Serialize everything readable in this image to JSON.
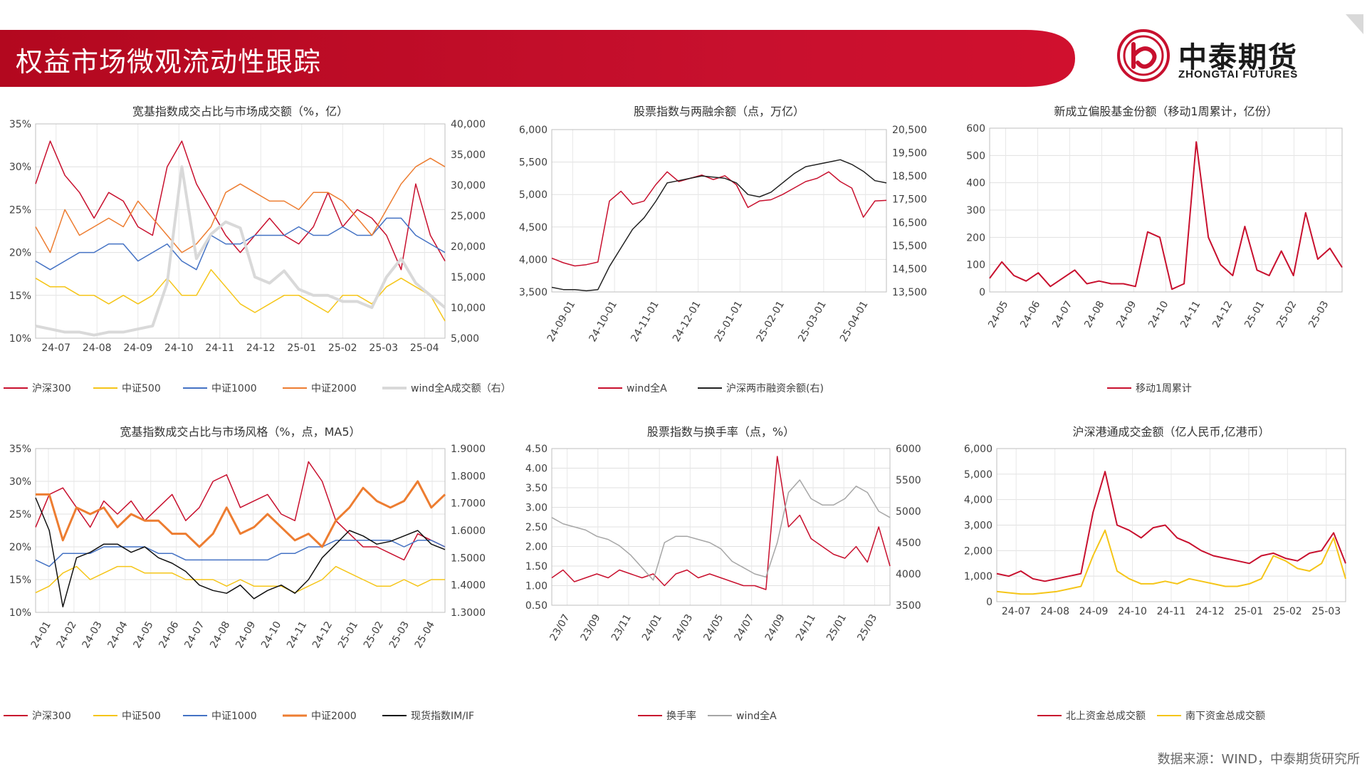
{
  "page": {
    "title": "权益市场微观流动性跟踪",
    "logo_cn": "中泰期货",
    "logo_en": "ZHONGTAI FUTURES",
    "source": "数据来源：WIND，中泰期货研究所",
    "accent": "#c8102e"
  },
  "chart_data": [
    {
      "id": "c1",
      "type": "line",
      "title": "宽基指数成交占比与市场成交额（%，亿）",
      "x_labels": [
        "24-07",
        "24-08",
        "24-09",
        "24-10",
        "24-11",
        "24-12",
        "25-01",
        "25-02",
        "25-03",
        "25-04"
      ],
      "ylim": [
        10,
        35
      ],
      "y_ticks": [
        "10%",
        "15%",
        "20%",
        "25%",
        "30%",
        "35%"
      ],
      "y2lim": [
        5000,
        40000
      ],
      "y2_ticks": [
        "5,000",
        "10,000",
        "15,000",
        "20,000",
        "25,000",
        "30,000",
        "35,000",
        "40,000"
      ],
      "grid": true,
      "legend": "bottom",
      "series": [
        {
          "name": "沪深300",
          "color": "#c8102e",
          "axis": "left",
          "values": [
            28,
            33,
            29,
            27,
            24,
            27,
            26,
            23,
            22,
            30,
            33,
            28,
            25,
            22,
            20,
            22,
            24,
            22,
            21,
            23,
            27,
            23,
            25,
            24,
            22,
            18,
            28,
            22,
            19
          ],
          "width": 1.5
        },
        {
          "name": "中证500",
          "color": "#f5c518",
          "axis": "left",
          "values": [
            17,
            16,
            16,
            15,
            15,
            14,
            15,
            14,
            15,
            17,
            15,
            15,
            18,
            16,
            14,
            13,
            14,
            15,
            15,
            14,
            13,
            15,
            15,
            14,
            16,
            17,
            16,
            15,
            12
          ],
          "width": 1.5
        },
        {
          "name": "中证1000",
          "color": "#4472c4",
          "axis": "left",
          "values": [
            19,
            18,
            19,
            20,
            20,
            21,
            21,
            19,
            20,
            21,
            19,
            18,
            22,
            21,
            21,
            22,
            22,
            22,
            23,
            22,
            22,
            23,
            22,
            22,
            24,
            24,
            22,
            21,
            20
          ],
          "width": 1.5
        },
        {
          "name": "中证2000",
          "color": "#ed7d31",
          "axis": "left",
          "values": [
            23,
            20,
            25,
            22,
            23,
            24,
            23,
            26,
            24,
            22,
            20,
            21,
            23,
            27,
            28,
            27,
            26,
            26,
            25,
            27,
            27,
            26,
            24,
            22,
            25,
            28,
            30,
            31,
            30
          ],
          "width": 1.5
        },
        {
          "name": "wind全A成交额（右）",
          "color": "#d9d9d9",
          "axis": "right",
          "values": [
            7000,
            6500,
            6000,
            6000,
            5500,
            6000,
            6000,
            6500,
            7000,
            14000,
            33000,
            18000,
            22000,
            24000,
            23000,
            15000,
            14000,
            16000,
            13000,
            12000,
            12000,
            11000,
            11000,
            10000,
            15000,
            18000,
            14000,
            12000,
            10000
          ],
          "width": 4
        }
      ]
    },
    {
      "id": "c2",
      "type": "line",
      "title": "股票指数与两融余额（点，万亿）",
      "x_labels": [
        "24-09-01",
        "24-10-01",
        "24-11-01",
        "24-12-01",
        "25-01-01",
        "25-02-01",
        "25-03-01",
        "25-04-01"
      ],
      "ylim": [
        3500,
        6000
      ],
      "y_ticks": [
        "3,500",
        "4,000",
        "4,500",
        "5,000",
        "5,500",
        "6,000"
      ],
      "y2lim": [
        13500,
        20500
      ],
      "y2_ticks": [
        "13,500",
        "14,500",
        "15,500",
        "16,500",
        "17,500",
        "18,500",
        "19,500",
        "20,500"
      ],
      "grid": true,
      "legend": "bottom",
      "series": [
        {
          "name": "wind全A",
          "color": "#c8102e",
          "axis": "left",
          "values": [
            4020,
            3950,
            3900,
            3920,
            3960,
            4900,
            5050,
            4850,
            4900,
            5150,
            5350,
            5200,
            5250,
            5300,
            5230,
            5290,
            5150,
            4800,
            4900,
            4920,
            5000,
            5100,
            5200,
            5250,
            5350,
            5200,
            5100,
            4650,
            4900,
            4910
          ],
          "width": 1.5
        },
        {
          "name": "沪深两市融资余额(右)",
          "color": "#222222",
          "axis": "right",
          "values": [
            13700,
            13600,
            13600,
            13550,
            13600,
            14600,
            15400,
            16200,
            16700,
            17400,
            18200,
            18300,
            18400,
            18500,
            18450,
            18400,
            18200,
            17700,
            17600,
            17800,
            18200,
            18600,
            18900,
            19000,
            19100,
            19200,
            19000,
            18700,
            18300,
            18200
          ],
          "width": 1.5
        }
      ]
    },
    {
      "id": "c3",
      "type": "line",
      "title": "新成立偏股基金份额（移动1周累计，亿份）",
      "x_labels": [
        "24-05",
        "24-06",
        "24-07",
        "24-08",
        "24-09",
        "24-10",
        "24-11",
        "24-12",
        "25-01",
        "25-02",
        "25-03"
      ],
      "ylim": [
        0,
        600
      ],
      "y_ticks": [
        "0",
        "100",
        "200",
        "300",
        "400",
        "500",
        "600"
      ],
      "grid": true,
      "legend": "bottom",
      "series": [
        {
          "name": "移动1周累计",
          "color": "#c8102e",
          "axis": "left",
          "values": [
            50,
            110,
            60,
            40,
            70,
            20,
            50,
            80,
            30,
            40,
            30,
            30,
            20,
            220,
            200,
            10,
            30,
            550,
            200,
            100,
            60,
            240,
            80,
            60,
            150,
            60,
            290,
            120,
            160,
            90
          ],
          "width": 2
        }
      ]
    },
    {
      "id": "c4",
      "type": "line",
      "title": "宽基指数成交占比与市场风格（%，点，MA5）",
      "x_labels": [
        "24-01",
        "24-02",
        "24-03",
        "24-04",
        "24-05",
        "24-06",
        "24-07",
        "24-08",
        "24-09",
        "24-10",
        "24-11",
        "24-12",
        "25-01",
        "25-02",
        "25-03",
        "25-04"
      ],
      "ylim": [
        10,
        35
      ],
      "y_ticks": [
        "10%",
        "15%",
        "20%",
        "25%",
        "30%",
        "35%"
      ],
      "y2lim": [
        1.3,
        1.9
      ],
      "y2_ticks": [
        "1.3000",
        "1.4000",
        "1.5000",
        "1.6000",
        "1.7000",
        "1.8000",
        "1.9000"
      ],
      "grid": true,
      "legend": "bottom",
      "series": [
        {
          "name": "沪深300",
          "color": "#c8102e",
          "axis": "left",
          "values": [
            23,
            28,
            29,
            26,
            23,
            27,
            25,
            27,
            24,
            26,
            28,
            24,
            26,
            30,
            31,
            26,
            27,
            28,
            25,
            24,
            33,
            30,
            24,
            22,
            20,
            20,
            19,
            18,
            22,
            21,
            20
          ],
          "width": 1.5
        },
        {
          "name": "中证500",
          "color": "#f5c518",
          "axis": "left",
          "values": [
            13,
            14,
            16,
            17,
            15,
            16,
            17,
            17,
            16,
            16,
            16,
            15,
            15,
            15,
            14,
            15,
            14,
            14,
            14,
            13,
            14,
            15,
            17,
            16,
            15,
            14,
            14,
            15,
            14,
            15,
            15
          ],
          "width": 1.5
        },
        {
          "name": "中证1000",
          "color": "#4472c4",
          "axis": "left",
          "values": [
            18,
            17,
            19,
            19,
            19,
            20,
            20,
            20,
            20,
            19,
            19,
            18,
            18,
            18,
            18,
            18,
            18,
            18,
            19,
            19,
            20,
            20,
            21,
            21,
            21,
            21,
            21,
            20,
            21,
            21,
            20
          ],
          "width": 1.5
        },
        {
          "name": "中证2000",
          "color": "#ed7d31",
          "axis": "left",
          "values": [
            28,
            28,
            21,
            26,
            25,
            26,
            23,
            25,
            24,
            24,
            22,
            22,
            20,
            22,
            26,
            22,
            23,
            25,
            23,
            21,
            22,
            20,
            24,
            26,
            29,
            27,
            26,
            27,
            30,
            26,
            28
          ],
          "width": 3
        },
        {
          "name": "现货指数IM/IF",
          "color": "#111111",
          "axis": "right",
          "values": [
            1.72,
            1.6,
            1.32,
            1.5,
            1.52,
            1.55,
            1.55,
            1.52,
            1.54,
            1.5,
            1.48,
            1.45,
            1.4,
            1.38,
            1.37,
            1.4,
            1.35,
            1.38,
            1.4,
            1.37,
            1.42,
            1.5,
            1.55,
            1.6,
            1.58,
            1.55,
            1.56,
            1.58,
            1.6,
            1.55,
            1.53
          ],
          "width": 1.5
        }
      ]
    },
    {
      "id": "c5",
      "type": "line",
      "title": "股票指数与换手率（点，%）",
      "x_labels": [
        "23/07",
        "23/09",
        "23/11",
        "24/01",
        "24/03",
        "24/05",
        "24/07",
        "24/09",
        "24/11",
        "25/01",
        "25/03"
      ],
      "ylim": [
        0.5,
        4.5
      ],
      "y_ticks": [
        "0.50",
        "1.00",
        "1.50",
        "2.00",
        "2.50",
        "3.00",
        "3.50",
        "4.00",
        "4.50"
      ],
      "y2lim": [
        3500,
        6000
      ],
      "y2_ticks": [
        "3500",
        "4000",
        "4500",
        "5000",
        "5500",
        "6000"
      ],
      "grid": true,
      "legend": "bottom",
      "series": [
        {
          "name": "换手率",
          "color": "#c8102e",
          "axis": "left",
          "values": [
            1.2,
            1.4,
            1.1,
            1.2,
            1.3,
            1.2,
            1.4,
            1.3,
            1.2,
            1.3,
            1.0,
            1.3,
            1.4,
            1.2,
            1.3,
            1.2,
            1.1,
            1.0,
            1.0,
            0.9,
            4.3,
            2.5,
            2.8,
            2.2,
            2.0,
            1.8,
            1.7,
            2.0,
            1.6,
            2.5,
            1.5
          ],
          "width": 1.5
        },
        {
          "name": "wind全A",
          "color": "#a6a6a6",
          "axis": "right",
          "values": [
            4900,
            4800,
            4750,
            4700,
            4600,
            4550,
            4450,
            4300,
            4100,
            3900,
            4500,
            4600,
            4600,
            4550,
            4500,
            4400,
            4200,
            4100,
            4000,
            3950,
            4500,
            5300,
            5500,
            5200,
            5100,
            5100,
            5200,
            5400,
            5300,
            5000,
            4900
          ],
          "width": 1.5
        }
      ]
    },
    {
      "id": "c6",
      "type": "line",
      "title": "沪深港通成交金额（亿人民币,亿港币）",
      "x_labels": [
        "24-07",
        "24-08",
        "24-09",
        "24-10",
        "24-11",
        "24-12",
        "25-01",
        "25-02",
        "25-03"
      ],
      "ylim": [
        0,
        6000
      ],
      "y_ticks": [
        "0",
        "1,000",
        "2,000",
        "3,000",
        "4,000",
        "5,000",
        "6,000"
      ],
      "grid": true,
      "legend": "bottom",
      "series": [
        {
          "name": "北上资金总成交额",
          "color": "#c8102e",
          "axis": "left",
          "values": [
            1100,
            1000,
            1200,
            900,
            800,
            900,
            1000,
            1100,
            3500,
            5100,
            3000,
            2800,
            2500,
            2900,
            3000,
            2500,
            2300,
            2000,
            1800,
            1700,
            1600,
            1500,
            1800,
            1900,
            1700,
            1600,
            1900,
            2000,
            2700,
            1500
          ],
          "width": 2
        },
        {
          "name": "南下资金总成交额",
          "color": "#f5c518",
          "axis": "left",
          "values": [
            400,
            350,
            300,
            300,
            350,
            400,
            500,
            600,
            1800,
            2800,
            1200,
            900,
            700,
            700,
            800,
            700,
            900,
            800,
            700,
            600,
            600,
            700,
            900,
            1800,
            1600,
            1300,
            1200,
            1500,
            2500,
            900
          ],
          "width": 2
        }
      ]
    }
  ]
}
